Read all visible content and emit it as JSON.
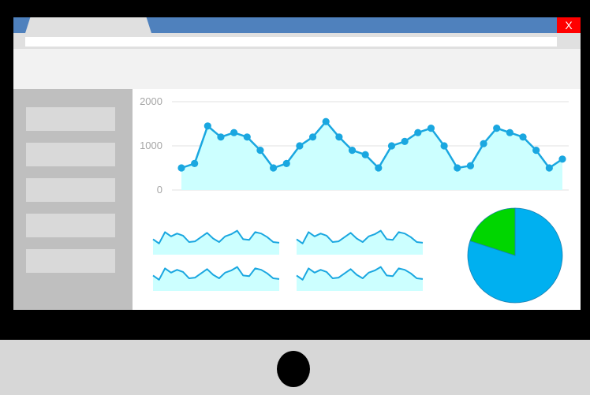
{
  "window": {
    "close_label": "X"
  },
  "sidebar": {
    "items": [
      "",
      "",
      "",
      "",
      ""
    ]
  },
  "colors": {
    "title_bar": "#4f81bd",
    "close_button": "#ff0000",
    "series_line": "#1aa7e0",
    "series_fill": "#ccffff",
    "pie_main": "#00b0f0",
    "pie_secondary": "#00d600"
  },
  "chart_data": [
    {
      "type": "area",
      "x": [
        1,
        2,
        3,
        4,
        5,
        6,
        7,
        8,
        9,
        10,
        11,
        12,
        13,
        14,
        15,
        16,
        17,
        18,
        19,
        20,
        21,
        22,
        23,
        24,
        25,
        26,
        27,
        28,
        29,
        30
      ],
      "series": [
        {
          "values": [
            500,
            600,
            1450,
            1200,
            1300,
            1200,
            900,
            500,
            600,
            1000,
            1200,
            1550,
            1200,
            900,
            800,
            500,
            1000,
            1100,
            1300,
            1400,
            1000,
            500,
            550,
            1050,
            1400,
            1300,
            1200,
            900,
            500,
            700
          ]
        }
      ],
      "yticks": [
        0,
        1000,
        2000
      ],
      "ylim": [
        0,
        2000
      ],
      "grid": true
    },
    {
      "type": "line",
      "values": [
        14,
        8,
        24,
        18,
        22,
        19,
        10,
        11,
        17,
        23,
        15,
        10,
        18,
        21,
        26,
        14,
        13,
        24,
        22,
        17,
        10,
        9
      ],
      "ylim": [
        0,
        30
      ]
    },
    {
      "type": "line",
      "values": [
        14,
        8,
        24,
        18,
        22,
        19,
        10,
        11,
        17,
        23,
        15,
        10,
        18,
        21,
        26,
        14,
        13,
        24,
        22,
        17,
        10,
        9
      ],
      "ylim": [
        0,
        30
      ]
    },
    {
      "type": "line",
      "values": [
        14,
        8,
        24,
        18,
        22,
        19,
        10,
        11,
        17,
        23,
        15,
        10,
        18,
        21,
        26,
        14,
        13,
        24,
        22,
        17,
        10,
        9
      ],
      "ylim": [
        0,
        30
      ]
    },
    {
      "type": "line",
      "values": [
        14,
        8,
        24,
        18,
        22,
        19,
        10,
        11,
        17,
        23,
        15,
        10,
        18,
        21,
        26,
        14,
        13,
        24,
        22,
        17,
        10,
        9
      ],
      "ylim": [
        0,
        30
      ]
    },
    {
      "type": "pie",
      "values": [
        80,
        20
      ],
      "colors": [
        "#00b0f0",
        "#00d600"
      ]
    }
  ]
}
